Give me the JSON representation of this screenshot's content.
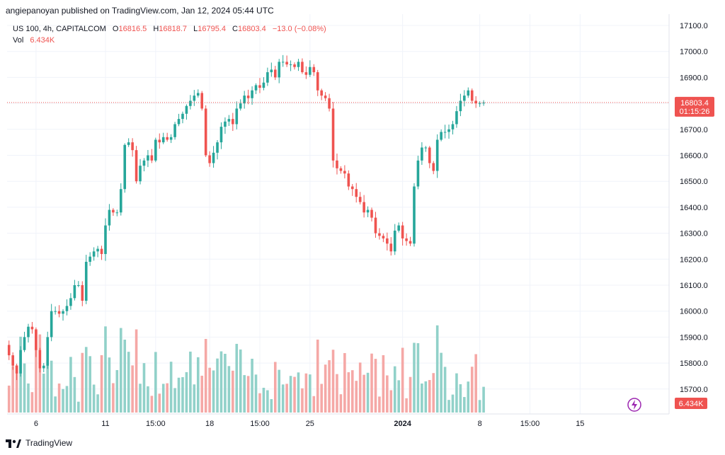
{
  "header": {
    "published": "angiepanoyan published on TradingView.com, Jan 12, 2024 05:44 UTC"
  },
  "legend": {
    "symbol": "US 100, 4h, CAPITALCOM",
    "open_label": "O",
    "open": "16816.5",
    "high_label": "H",
    "high": "16818.7",
    "low_label": "L",
    "low": "16795.4",
    "close_label": "C",
    "close": "16803.4",
    "change": "−13.0 (−0.08%)",
    "vol_label": "Vol",
    "vol": "6.434K"
  },
  "price_badge": {
    "value": "16803.4",
    "countdown": "01:15:26"
  },
  "volume_badge": {
    "value": "6.434K"
  },
  "footer": {
    "brand": "TradingView"
  },
  "colors": {
    "up": "#26a69a",
    "down": "#ef5350",
    "up_vol": "#91d1c9",
    "down_vol": "#f5a8a6",
    "grid": "#f0f3fa"
  },
  "chart_data": {
    "type": "candlestick",
    "symbol": "US 100",
    "timeframe": "4h",
    "y_ticks": [
      15700,
      15800,
      15900,
      16000,
      16100,
      16200,
      16300,
      16400,
      16500,
      16600,
      16700,
      16800,
      16900,
      17000,
      17100
    ],
    "y_tick_labels": [
      "15700.0",
      "15800.0",
      "15900.0",
      "16000.0",
      "16100.0",
      "16200.0",
      "16300.0",
      "16400.0",
      "16500.0",
      "16600.0",
      "16700.0",
      "16800.0",
      "16900.0",
      "17000.0",
      "17100.0"
    ],
    "x_tick_labels": [
      "6",
      "11",
      "15:00",
      "18",
      "15:00",
      "25",
      "2024",
      "8",
      "15:00",
      "15"
    ],
    "x_tick_bar_index": [
      7,
      25,
      38,
      52,
      65,
      78,
      102,
      122,
      135,
      148
    ],
    "last_price": 16803.4,
    "closes": [
      15830,
      15790,
      15760,
      15850,
      15900,
      15940,
      15930,
      15850,
      15780,
      15790,
      15900,
      16000,
      16000,
      15990,
      16000,
      16020,
      16050,
      16100,
      16100,
      16040,
      16190,
      16210,
      16230,
      16240,
      16220,
      16330,
      16390,
      16380,
      16380,
      16470,
      16640,
      16650,
      16620,
      16500,
      16560,
      16580,
      16600,
      16580,
      16660,
      16650,
      16670,
      16660,
      16670,
      16720,
      16740,
      16760,
      16790,
      16810,
      16830,
      16840,
      16780,
      16600,
      16570,
      16610,
      16650,
      16710,
      16730,
      16740,
      16720,
      16780,
      16800,
      16830,
      16820,
      16850,
      16870,
      16860,
      16880,
      16920,
      16930,
      16900,
      16960,
      16960,
      16950,
      16950,
      16940,
      16960,
      16920,
      16910,
      16940,
      16920,
      16850,
      16830,
      16820,
      16780,
      16580,
      16550,
      16540,
      16530,
      16480,
      16470,
      16440,
      16420,
      16380,
      16390,
      16360,
      16300,
      16290,
      16280,
      16260,
      16230,
      16310,
      16330,
      16280,
      16270,
      16260,
      16480,
      16580,
      16630,
      16630,
      16570,
      16540,
      16660,
      16690,
      16690,
      16700,
      16720,
      16770,
      16810,
      16830,
      16850,
      16810,
      16800,
      16800,
      16803
    ]
  }
}
